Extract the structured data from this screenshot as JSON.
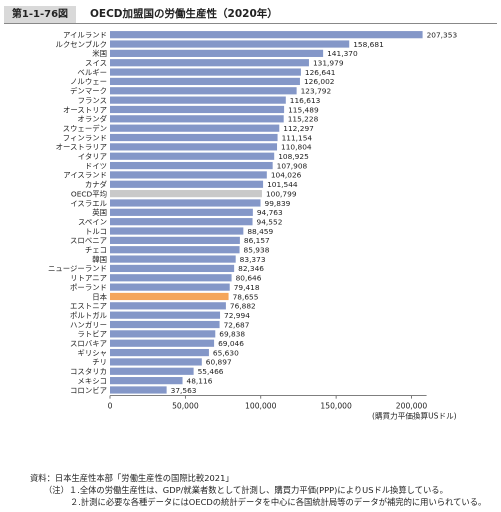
{
  "header": {
    "figure_number": "第1-1-76図",
    "title": "OECD加盟国の労働生産性（2020年）"
  },
  "chart_data": {
    "type": "bar",
    "orientation": "horizontal",
    "categories": [
      "アイルランド",
      "ルクセンブルク",
      "米国",
      "スイス",
      "ベルギー",
      "ノルウェー",
      "デンマーク",
      "フランス",
      "オーストリア",
      "オランダ",
      "スウェーデン",
      "フィンランド",
      "オーストラリア",
      "イタリア",
      "ドイツ",
      "アイスランド",
      "カナダ",
      "OECD平均",
      "イスラエル",
      "英国",
      "スペイン",
      "トルコ",
      "スロベニア",
      "チェコ",
      "韓国",
      "ニュージーランド",
      "リトアニア",
      "ポーランド",
      "日本",
      "エストニア",
      "ポルトガル",
      "ハンガリー",
      "ラトビア",
      "スロバキア",
      "ギリシャ",
      "チリ",
      "コスタリカ",
      "メキシコ",
      "コロンビア"
    ],
    "values": [
      207353,
      158681,
      141370,
      131979,
      126641,
      126002,
      123792,
      116613,
      115489,
      115228,
      112297,
      111154,
      110804,
      108925,
      107908,
      104026,
      101544,
      100799,
      99839,
      94763,
      94552,
      88459,
      86157,
      85938,
      83373,
      82346,
      80646,
      79418,
      78655,
      76882,
      72994,
      72687,
      69838,
      69046,
      65630,
      60897,
      55466,
      48116,
      37563
    ],
    "value_labels": [
      "207,353",
      "158,681",
      "141,370",
      "131,979",
      "126,641",
      "126,002",
      "123,792",
      "116,613",
      "115,489",
      "115,228",
      "112,297",
      "111,154",
      "110,804",
      "108,925",
      "107,908",
      "104,026",
      "101,544",
      "100,799",
      "99,839",
      "94,763",
      "94,552",
      "88,459",
      "86,157",
      "85,938",
      "83,373",
      "82,346",
      "80,646",
      "79,418",
      "78,655",
      "76,882",
      "72,994",
      "72,687",
      "69,838",
      "69,046",
      "65,630",
      "60,897",
      "55,466",
      "48,116",
      "37,563"
    ],
    "highlight": {
      "OECD平均": "#c9c9c9",
      "日本": "#f5a65b"
    },
    "default_color": "#8497c8",
    "xlim": [
      0,
      210000
    ],
    "xticks": [
      0,
      50000,
      100000,
      150000,
      200000
    ],
    "xtick_labels": [
      "0",
      "50,000",
      "100,000",
      "150,000",
      "200,000"
    ],
    "xlabel": "(購買力平価換算USドル)",
    "grid": false
  },
  "notes": {
    "source": "資料：日本生産性本部「労働生産性の国際比較2021」",
    "note1": "（注）１.全体の労働生産性は、GDP/就業者数として計測し、購買力平価(PPP)によりUSドル換算している。",
    "note2": "２.計測に必要な各種データにはOECDの統計データを中心に各国統計局等のデータが補完的に用いられている。"
  }
}
